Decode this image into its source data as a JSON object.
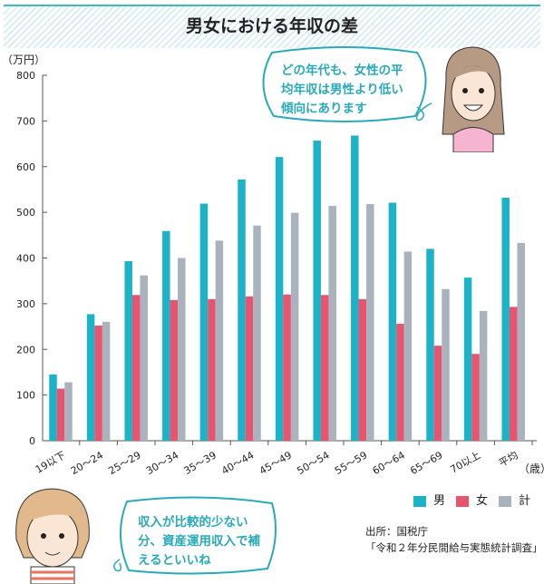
{
  "title": "男女における年収の差",
  "bubble_top": [
    "どの年代も、女性の平",
    "均年収は男性より低い",
    "傾向にあります"
  ],
  "bubble_bottom": [
    "収入が比較的少ない",
    "分、資産運用収入で補",
    "えるといいね"
  ],
  "source": [
    "出所：国税庁",
    "「令和２年分民間給与実態統計調査」"
  ],
  "chart_data": {
    "type": "bar",
    "title": "男女における年収の差",
    "ylabel": "（万円）",
    "xlabel": "（歳）",
    "ylim": [
      0,
      800
    ],
    "yticks": [
      0,
      100,
      200,
      300,
      400,
      500,
      600,
      700,
      800
    ],
    "legend_position": "bottom-right",
    "categories": [
      "19以下",
      "20～24",
      "25～29",
      "30～34",
      "35～39",
      "40～44",
      "45～49",
      "50～54",
      "55～59",
      "60～64",
      "65～69",
      "70以上",
      "平均"
    ],
    "series": [
      {
        "name": "男",
        "color": "#1cb3c8",
        "values": [
          145,
          277,
          393,
          459,
          519,
          572,
          621,
          657,
          668,
          521,
          420,
          357,
          532
        ]
      },
      {
        "name": "女",
        "color": "#e8546e",
        "values": [
          114,
          252,
          319,
          308,
          310,
          316,
          320,
          319,
          310,
          256,
          208,
          190,
          293
        ]
      },
      {
        "name": "計",
        "color": "#a9b3bd",
        "values": [
          128,
          260,
          362,
          400,
          438,
          471,
          499,
          514,
          518,
          414,
          332,
          284,
          433
        ]
      }
    ]
  }
}
